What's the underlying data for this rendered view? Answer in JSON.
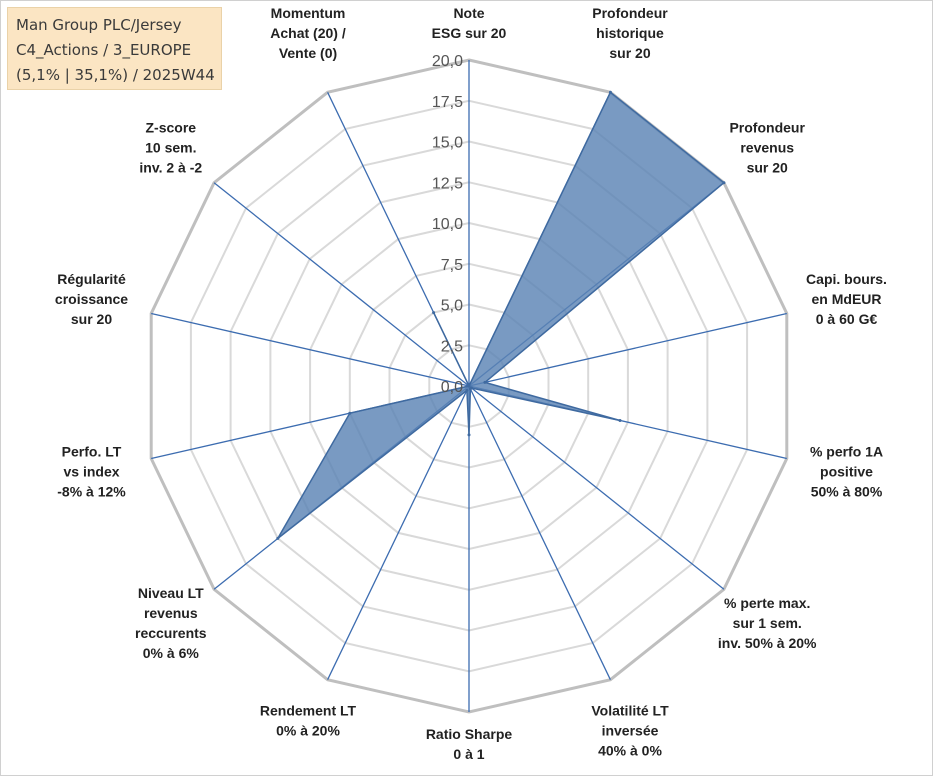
{
  "info_box": {
    "line1": "Man Group PLC/Jersey",
    "line2": "C4_Actions / 3_EUROPE",
    "line3": "(5,1% | 35,1%) / 2025W44"
  },
  "colors": {
    "series_fill": "#5b84b5",
    "series_stroke": "#3f6aa0",
    "axis_line": "#3c6cb0",
    "grid_outer": "#bfbfbf",
    "grid_inner": "#d9d9d9"
  },
  "chart_data": {
    "type": "radar",
    "title": "",
    "rmin": 0,
    "rmax": 20,
    "tick_step": 2.5,
    "tick_labels": [
      "0,0",
      "2,5",
      "5,0",
      "7,5",
      "10,0",
      "12,5",
      "15,0",
      "17,5",
      "20,0"
    ],
    "grid": true,
    "categories": [
      [
        "Note",
        "ESG sur 20"
      ],
      [
        "Profondeur",
        "historique",
        "sur 20"
      ],
      [
        "Profondeur",
        "revenus",
        "sur 20"
      ],
      [
        "Capi. bours.",
        "en MdEUR",
        "0 à 60 G€"
      ],
      [
        "% perfo 1A",
        "positive",
        "50% à 80%"
      ],
      [
        "% perte max.",
        "sur 1 sem.",
        "inv. 50% à 20%"
      ],
      [
        "Volatilité LT",
        "inversée",
        "40% à 0%"
      ],
      [
        "Ratio Sharpe",
        "0 à 1"
      ],
      [
        "Rendement LT",
        "0% à 20%"
      ],
      [
        "Niveau LT",
        "revenus",
        "reccurents",
        "0% à 6%"
      ],
      [
        "Perfo. LT",
        "vs index",
        "-8% à 12%"
      ],
      [
        "Régularité",
        "croissance",
        "sur 20"
      ],
      [
        "Z-score",
        "10 sem.",
        "inv. 2 à -2"
      ],
      [
        "Momentum",
        "Achat (20) /",
        "Vente (0)"
      ]
    ],
    "series": [
      {
        "values": [
          0,
          20,
          20,
          1.0,
          9.5,
          0.2,
          0.2,
          3.0,
          0.3,
          15.0,
          7.5,
          0,
          0,
          5.0
        ]
      }
    ]
  }
}
